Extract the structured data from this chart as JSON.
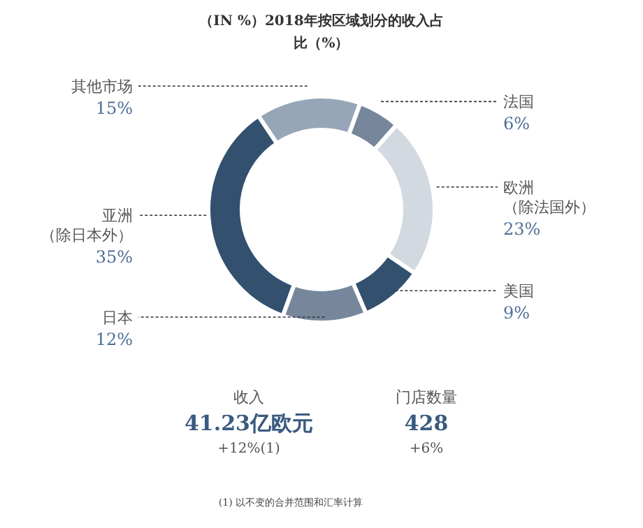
{
  "chart_data": {
    "type": "donut",
    "title": "（IN %）2018年按区域划分的收入占比（%）",
    "categories": [
      "其他市场",
      "法国",
      "欧洲（除法国外）",
      "美国",
      "日本",
      "亚洲（除日本外）"
    ],
    "values": [
      15,
      6,
      23,
      9,
      12,
      35
    ],
    "value_labels": [
      "15%",
      "6%",
      "23%",
      "9%",
      "12%",
      "35%"
    ],
    "colors": [
      "#96a6b8",
      "#76879c",
      "#d3d9e0",
      "#33506f",
      "#76879c",
      "#33506f"
    ],
    "annotations": [
      "收入",
      "41.23亿欧元",
      "+12%(1)",
      "门店数量",
      "428",
      "+6%",
      "(1) 以不变的合并范围和汇率计算"
    ]
  }
}
